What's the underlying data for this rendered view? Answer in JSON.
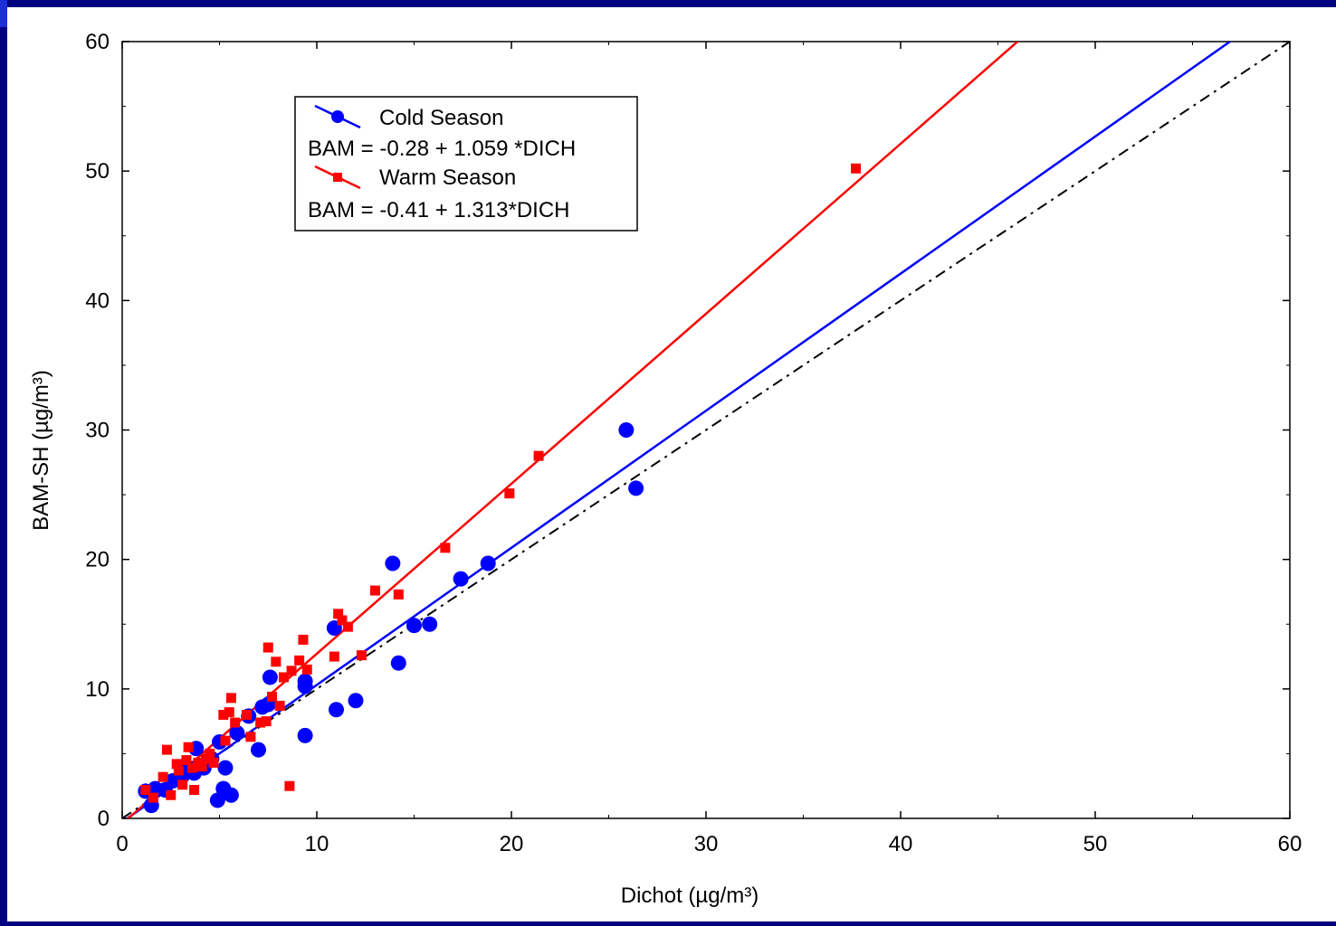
{
  "colors": {
    "background": "#000080",
    "cold": "#0000ff",
    "warm": "#ff0000",
    "identity": "#000000"
  },
  "chart_data": {
    "type": "scatter",
    "xlabel": "Dichot (µg/m³)",
    "ylabel": "BAM-SH (µg/m³)",
    "xlim": [
      0,
      60
    ],
    "ylim": [
      0,
      60
    ],
    "xticks": [
      0,
      10,
      20,
      30,
      40,
      50,
      60
    ],
    "yticks": [
      0,
      10,
      20,
      30,
      40,
      50,
      60
    ],
    "grid": false,
    "legend_position": "top-left",
    "series": [
      {
        "name": "Cold Season",
        "equation": "BAM = -0.28 + 1.059 *DICH",
        "marker": "circle",
        "color": "#0000ff",
        "fit": {
          "intercept": -0.28,
          "slope": 1.059
        },
        "points": [
          [
            1.2,
            2.1
          ],
          [
            1.5,
            1.0
          ],
          [
            1.7,
            2.3
          ],
          [
            2.2,
            2.2
          ],
          [
            2.6,
            2.9
          ],
          [
            3.1,
            3.3
          ],
          [
            3.4,
            3.9
          ],
          [
            3.7,
            3.5
          ],
          [
            3.8,
            5.4
          ],
          [
            4.2,
            3.9
          ],
          [
            4.6,
            4.6
          ],
          [
            4.9,
            1.4
          ],
          [
            5.0,
            5.9
          ],
          [
            5.2,
            2.3
          ],
          [
            5.3,
            3.9
          ],
          [
            5.6,
            1.8
          ],
          [
            5.9,
            6.6
          ],
          [
            6.5,
            7.9
          ],
          [
            7.0,
            5.3
          ],
          [
            7.2,
            8.6
          ],
          [
            7.5,
            8.8
          ],
          [
            7.6,
            10.9
          ],
          [
            9.4,
            6.4
          ],
          [
            9.4,
            10.2
          ],
          [
            9.4,
            10.6
          ],
          [
            10.9,
            14.7
          ],
          [
            11.0,
            8.4
          ],
          [
            12.0,
            9.1
          ],
          [
            13.9,
            19.7
          ],
          [
            14.2,
            12.0
          ],
          [
            15.0,
            14.9
          ],
          [
            15.8,
            15.0
          ],
          [
            17.4,
            18.5
          ],
          [
            18.8,
            19.7
          ],
          [
            25.9,
            30.0
          ],
          [
            26.4,
            25.5
          ]
        ]
      },
      {
        "name": "Warm Season",
        "equation": "BAM = -0.41 + 1.313*DICH",
        "marker": "square",
        "color": "#ff0000",
        "fit": {
          "intercept": -0.41,
          "slope": 1.313
        },
        "points": [
          [
            1.2,
            2.2
          ],
          [
            1.6,
            1.6
          ],
          [
            2.1,
            3.2
          ],
          [
            2.3,
            5.3
          ],
          [
            2.5,
            1.8
          ],
          [
            2.8,
            4.2
          ],
          [
            2.9,
            3.7
          ],
          [
            3.1,
            2.6
          ],
          [
            3.3,
            4.5
          ],
          [
            3.4,
            5.5
          ],
          [
            3.6,
            3.9
          ],
          [
            3.7,
            2.2
          ],
          [
            3.9,
            4.3
          ],
          [
            4.1,
            4.0
          ],
          [
            4.3,
            4.6
          ],
          [
            4.5,
            5.0
          ],
          [
            4.7,
            4.3
          ],
          [
            5.2,
            8.0
          ],
          [
            5.3,
            6.0
          ],
          [
            5.5,
            8.2
          ],
          [
            5.6,
            9.3
          ],
          [
            5.8,
            7.4
          ],
          [
            6.4,
            8.0
          ],
          [
            6.6,
            6.3
          ],
          [
            7.1,
            7.4
          ],
          [
            7.4,
            7.5
          ],
          [
            7.5,
            13.2
          ],
          [
            7.7,
            9.4
          ],
          [
            7.9,
            12.1
          ],
          [
            8.1,
            8.7
          ],
          [
            8.3,
            10.9
          ],
          [
            8.6,
            2.5
          ],
          [
            8.7,
            11.4
          ],
          [
            9.1,
            12.2
          ],
          [
            9.3,
            13.8
          ],
          [
            9.5,
            11.5
          ],
          [
            10.9,
            12.5
          ],
          [
            11.1,
            15.8
          ],
          [
            11.3,
            15.3
          ],
          [
            11.6,
            14.8
          ],
          [
            12.3,
            12.6
          ],
          [
            13.0,
            17.6
          ],
          [
            14.2,
            17.3
          ],
          [
            16.6,
            20.9
          ],
          [
            19.9,
            25.1
          ],
          [
            21.4,
            28.0
          ],
          [
            37.7,
            50.2
          ]
        ]
      }
    ],
    "reference_line": {
      "style": "dash-dot",
      "slope": 1,
      "intercept": 0
    }
  }
}
